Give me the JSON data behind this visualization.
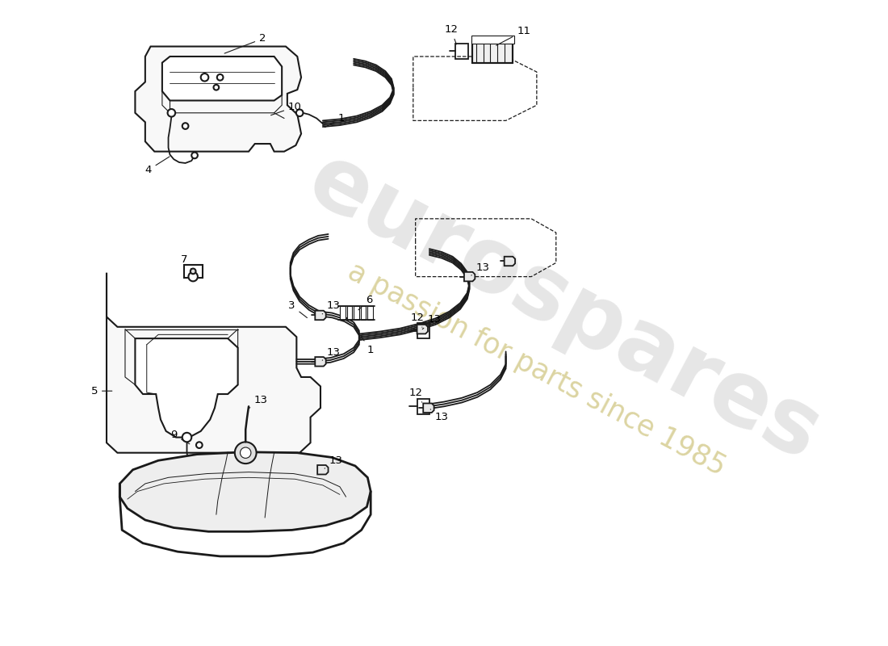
{
  "bg_color": "#ffffff",
  "line_color": "#1a1a1a",
  "wm1_color": "#c8c8c8",
  "wm2_color": "#d8d098",
  "lw_main": 1.5,
  "lw_tube": 1.3,
  "lw_thin": 0.8
}
